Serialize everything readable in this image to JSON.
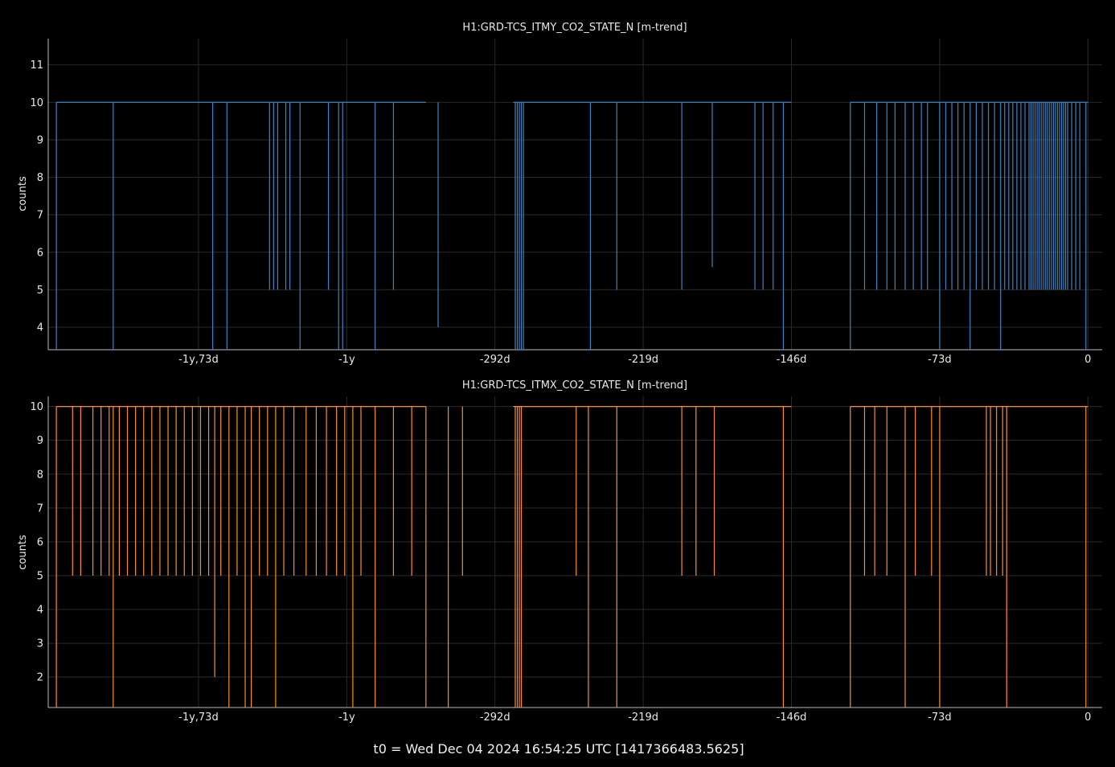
{
  "footer": "t0 = Wed Dec 04 2024 16:54:25 UTC [1417366483.5625]",
  "chart_data": [
    {
      "type": "line",
      "title": "H1:GRD-TCS_ITMY_CO2_STATE_N [m-trend]",
      "ylabel": "counts",
      "color": "#3b84c4",
      "xlim": [
        -512,
        7
      ],
      "ylim": [
        3.4,
        11.7
      ],
      "yticks": [
        4,
        5,
        6,
        7,
        8,
        9,
        10,
        11
      ],
      "xticks": [
        {
          "v": -438,
          "label": "-1y,73d"
        },
        {
          "v": -365,
          "label": "-1y"
        },
        {
          "v": -292,
          "label": "-292d"
        },
        {
          "v": -219,
          "label": "-219d"
        },
        {
          "v": -146,
          "label": "-146d"
        },
        {
          "v": -73,
          "label": "-73d"
        },
        {
          "v": 0,
          "label": "0"
        }
      ],
      "segments": [
        [
          -508,
          -326
        ],
        [
          -283,
          -146
        ],
        [
          -117,
          0
        ]
      ],
      "baseline": 10,
      "dips": [
        [
          -508,
          3.4
        ],
        [
          -480,
          3.4
        ],
        [
          -431,
          3.4
        ],
        [
          -424,
          3.4
        ],
        [
          -403,
          5
        ],
        [
          -401,
          5
        ],
        [
          -399,
          5
        ],
        [
          -395,
          5
        ],
        [
          -393,
          5
        ],
        [
          -388,
          3.4
        ],
        [
          -374,
          5
        ],
        [
          -369,
          3.4
        ],
        [
          -367,
          3.4
        ],
        [
          -351,
          3.4
        ],
        [
          -342,
          5
        ],
        [
          -320,
          4
        ],
        [
          -282,
          3.4
        ],
        [
          -281,
          3.4
        ],
        [
          -280,
          3.4
        ],
        [
          -279,
          3.4
        ],
        [
          -278,
          3.4
        ],
        [
          -245,
          3.4
        ],
        [
          -232,
          5
        ],
        [
          -200,
          5
        ],
        [
          -185,
          5.6
        ],
        [
          -164,
          5
        ],
        [
          -160,
          5
        ],
        [
          -155,
          5
        ],
        [
          -150,
          3.4
        ],
        [
          -117,
          3.4
        ],
        [
          -110,
          5
        ],
        [
          -104,
          5
        ],
        [
          -99,
          5
        ],
        [
          -95,
          5
        ],
        [
          -90,
          5
        ],
        [
          -86,
          5
        ],
        [
          -82,
          5
        ],
        [
          -79,
          5
        ],
        [
          -73,
          3.4
        ],
        [
          -70,
          5
        ],
        [
          -67,
          5
        ],
        [
          -64,
          5
        ],
        [
          -61,
          5
        ],
        [
          -58,
          3.4
        ],
        [
          -55,
          5
        ],
        [
          -52,
          5
        ],
        [
          -49,
          5
        ],
        [
          -46,
          5
        ],
        [
          -43,
          3.4
        ],
        [
          -41,
          5
        ],
        [
          -39,
          5
        ],
        [
          -37,
          5
        ],
        [
          -35,
          5
        ],
        [
          -33,
          5
        ],
        [
          -31,
          5
        ],
        [
          -29,
          5
        ],
        [
          -28,
          5
        ],
        [
          -27,
          5
        ],
        [
          -26,
          5
        ],
        [
          -25,
          5
        ],
        [
          -24,
          5
        ],
        [
          -23,
          5
        ],
        [
          -22,
          5
        ],
        [
          -21,
          5
        ],
        [
          -20,
          5
        ],
        [
          -19,
          5
        ],
        [
          -18,
          5
        ],
        [
          -17,
          5
        ],
        [
          -16,
          5
        ],
        [
          -15,
          5
        ],
        [
          -14,
          5
        ],
        [
          -13,
          5
        ],
        [
          -12,
          5
        ],
        [
          -11,
          5
        ],
        [
          -10,
          5
        ],
        [
          -8,
          5
        ],
        [
          -6,
          5
        ],
        [
          -4,
          5
        ],
        [
          -1,
          3.4
        ]
      ]
    },
    {
      "type": "line",
      "title": "H1:GRD-TCS_ITMX_CO2_STATE_N [m-trend]",
      "ylabel": "counts",
      "color": "#ff8c2a",
      "xlim": [
        -512,
        7
      ],
      "ylim": [
        1.1,
        10.3
      ],
      "yticks": [
        2,
        3,
        4,
        5,
        6,
        7,
        8,
        9,
        10
      ],
      "xticks": [
        {
          "v": -438,
          "label": "-1y,73d"
        },
        {
          "v": -365,
          "label": "-1y"
        },
        {
          "v": -292,
          "label": "-292d"
        },
        {
          "v": -219,
          "label": "-219d"
        },
        {
          "v": -146,
          "label": "-146d"
        },
        {
          "v": -73,
          "label": "-73d"
        },
        {
          "v": 0,
          "label": "0"
        }
      ],
      "segments": [
        [
          -508,
          -326
        ],
        [
          -283,
          -146
        ],
        [
          -117,
          0
        ]
      ],
      "baseline": 10,
      "dips": [
        [
          -508,
          1.1
        ],
        [
          -500,
          5
        ],
        [
          -496,
          5
        ],
        [
          -490,
          5
        ],
        [
          -486,
          5
        ],
        [
          -482,
          5
        ],
        [
          -480,
          1.1
        ],
        [
          -477,
          5
        ],
        [
          -473,
          5
        ],
        [
          -469,
          5
        ],
        [
          -465,
          5
        ],
        [
          -461,
          5
        ],
        [
          -457,
          5
        ],
        [
          -453,
          5
        ],
        [
          -449,
          5
        ],
        [
          -445,
          5
        ],
        [
          -441,
          5
        ],
        [
          -437,
          5
        ],
        [
          -433,
          5
        ],
        [
          -430,
          2
        ],
        [
          -427,
          5
        ],
        [
          -423,
          1.1
        ],
        [
          -419,
          5
        ],
        [
          -415,
          1.1
        ],
        [
          -412,
          1.1
        ],
        [
          -408,
          5
        ],
        [
          -404,
          5
        ],
        [
          -400,
          1.1
        ],
        [
          -396,
          5
        ],
        [
          -391,
          5
        ],
        [
          -385,
          5
        ],
        [
          -380,
          5
        ],
        [
          -375,
          5
        ],
        [
          -370,
          5
        ],
        [
          -366,
          5
        ],
        [
          -362,
          1.1
        ],
        [
          -358,
          5
        ],
        [
          -351,
          1.1
        ],
        [
          -342,
          5
        ],
        [
          -333,
          5
        ],
        [
          -326,
          1.1
        ],
        [
          -315,
          1.1
        ],
        [
          -308,
          5
        ],
        [
          -282,
          1.1
        ],
        [
          -281,
          1.1
        ],
        [
          -280,
          1.1
        ],
        [
          -279,
          1.1
        ],
        [
          -252,
          5
        ],
        [
          -246,
          1.1
        ],
        [
          -232,
          1.1
        ],
        [
          -200,
          5
        ],
        [
          -193,
          5
        ],
        [
          -184,
          5
        ],
        [
          -150,
          1.1
        ],
        [
          -117,
          1.1
        ],
        [
          -110,
          5
        ],
        [
          -105,
          5
        ],
        [
          -99,
          5
        ],
        [
          -90,
          1.1
        ],
        [
          -85,
          5
        ],
        [
          -77,
          5
        ],
        [
          -73,
          1.1
        ],
        [
          -50,
          5
        ],
        [
          -48,
          5
        ],
        [
          -45,
          5
        ],
        [
          -42,
          5
        ],
        [
          -40,
          1.1
        ],
        [
          -1,
          1.1
        ]
      ]
    }
  ]
}
